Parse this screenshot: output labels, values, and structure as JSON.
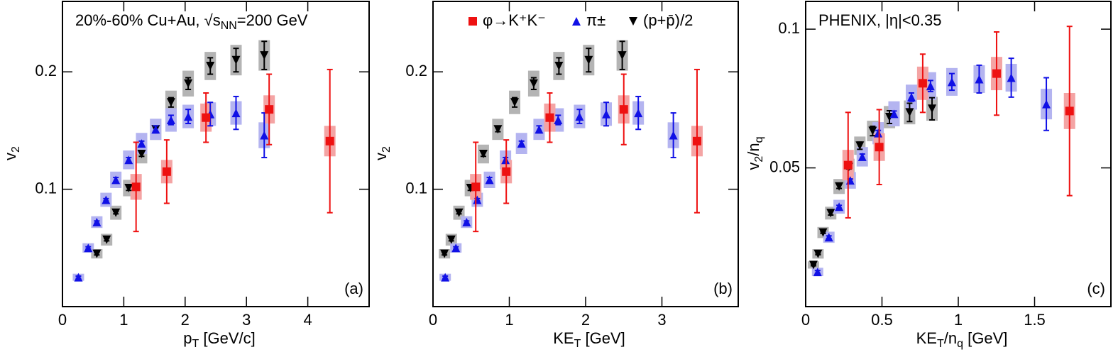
{
  "chart_data": [
    {
      "type": "scatter",
      "xlim": [
        0,
        5
      ],
      "ylim": [
        0,
        0.26
      ],
      "xticks": [
        0,
        1,
        2,
        3,
        4
      ],
      "yticks": [
        0.1,
        0.2
      ],
      "x_label": [
        {
          "text": "p"
        },
        {
          "sub": "T"
        },
        {
          "text": " [GeV/c]"
        }
      ],
      "y_label": [
        {
          "text": "v"
        },
        {
          "sub": "2"
        }
      ],
      "annotation": [
        {
          "text": "20%-60% Cu+Au, √"
        },
        {
          "text": "s"
        },
        {
          "sub": "NN"
        },
        {
          "text": "=200 GeV"
        }
      ],
      "panel_label": "(a)",
      "series": [
        {
          "marker": "triangle-down",
          "color": "#000000",
          "box_color": "#b4b4b4",
          "x": [
            0.56,
            0.72,
            0.87,
            1.08,
            1.29,
            1.52,
            1.77,
            2.05,
            2.41,
            2.83,
            3.29
          ],
          "values": [
            0.045,
            0.057,
            0.08,
            0.101,
            0.13,
            0.151,
            0.174,
            0.19,
            0.205,
            0.21,
            0.214
          ],
          "errors": [
            0.001,
            0.001,
            0.001,
            0.002,
            0.002,
            0.002,
            0.004,
            0.005,
            0.007,
            0.01,
            0.012
          ],
          "sys_errors": [
            0.004,
            0.005,
            0.006,
            0.007,
            0.008,
            0.009,
            0.01,
            0.011,
            0.012,
            0.013,
            0.013
          ]
        },
        {
          "marker": "triangle-up",
          "color": "#1010e6",
          "box_color": "#b4b4f0",
          "x": [
            0.26,
            0.42,
            0.56,
            0.71,
            0.87,
            1.08,
            1.29,
            1.52,
            1.77,
            2.05,
            2.41,
            2.83,
            3.29
          ],
          "values": [
            0.025,
            0.05,
            0.072,
            0.091,
            0.108,
            0.125,
            0.139,
            0.151,
            0.159,
            0.162,
            0.164,
            0.165,
            0.146
          ],
          "errors": [
            0.001,
            0.001,
            0.001,
            0.001,
            0.002,
            0.002,
            0.002,
            0.003,
            0.004,
            0.006,
            0.01,
            0.014,
            0.019
          ],
          "sys_errors": [
            0.003,
            0.004,
            0.005,
            0.006,
            0.007,
            0.008,
            0.009,
            0.009,
            0.01,
            0.01,
            0.01,
            0.01,
            0.011
          ]
        },
        {
          "marker": "square",
          "color": "#ee1111",
          "box_color": "#f4a4a4",
          "x": [
            1.2,
            1.7,
            2.34,
            3.37,
            4.36
          ],
          "values": [
            0.102,
            0.115,
            0.161,
            0.168,
            0.141
          ],
          "errors": [
            0.038,
            0.027,
            0.021,
            0.03,
            0.061
          ],
          "sys_errors": [
            0.011,
            0.01,
            0.012,
            0.012,
            0.013
          ]
        }
      ]
    },
    {
      "type": "scatter",
      "xlim": [
        0,
        4
      ],
      "ylim": [
        0,
        0.26
      ],
      "xticks": [
        0,
        1,
        2,
        3
      ],
      "yticks": [
        0.1,
        0.2
      ],
      "x_label": [
        {
          "text": "KE"
        },
        {
          "sub": "T"
        },
        {
          "text": " [GeV]"
        }
      ],
      "y_label": [
        {
          "text": "v"
        },
        {
          "sub": "2"
        }
      ],
      "panel_label": "(b)",
      "legend": "top",
      "series": [
        {
          "name": "(p+p̄)/2",
          "marker": "triangle-down",
          "color": "#000000",
          "box_color": "#b4b4b4",
          "x": [
            0.15,
            0.24,
            0.34,
            0.49,
            0.66,
            0.85,
            1.07,
            1.32,
            1.65,
            2.04,
            2.48
          ],
          "values": [
            0.045,
            0.057,
            0.08,
            0.101,
            0.13,
            0.151,
            0.174,
            0.19,
            0.205,
            0.21,
            0.214
          ],
          "errors": [
            0.001,
            0.001,
            0.001,
            0.002,
            0.002,
            0.002,
            0.004,
            0.005,
            0.007,
            0.01,
            0.012
          ],
          "sys_errors": [
            0.004,
            0.005,
            0.006,
            0.007,
            0.008,
            0.009,
            0.01,
            0.011,
            0.012,
            0.013,
            0.013
          ]
        },
        {
          "name": "π±",
          "marker": "triangle-up",
          "color": "#1010e6",
          "box_color": "#b4b4f0",
          "x": [
            0.16,
            0.3,
            0.44,
            0.58,
            0.74,
            0.95,
            1.16,
            1.39,
            1.64,
            1.92,
            2.27,
            2.69,
            3.15
          ],
          "values": [
            0.025,
            0.05,
            0.072,
            0.091,
            0.108,
            0.125,
            0.139,
            0.151,
            0.159,
            0.162,
            0.164,
            0.165,
            0.146
          ],
          "errors": [
            0.001,
            0.001,
            0.001,
            0.001,
            0.002,
            0.002,
            0.002,
            0.003,
            0.004,
            0.006,
            0.01,
            0.014,
            0.019
          ],
          "sys_errors": [
            0.003,
            0.004,
            0.005,
            0.006,
            0.007,
            0.008,
            0.009,
            0.009,
            0.01,
            0.01,
            0.01,
            0.01,
            0.011
          ]
        },
        {
          "name": "φ→K⁺K⁻",
          "marker": "square",
          "color": "#ee1111",
          "box_color": "#f4a4a4",
          "x": [
            0.56,
            0.96,
            1.53,
            2.5,
            3.46
          ],
          "values": [
            0.102,
            0.115,
            0.161,
            0.168,
            0.141
          ],
          "errors": [
            0.038,
            0.027,
            0.021,
            0.03,
            0.061
          ],
          "sys_errors": [
            0.011,
            0.01,
            0.012,
            0.012,
            0.013
          ]
        }
      ]
    },
    {
      "type": "scatter",
      "xlim": [
        0,
        2
      ],
      "ylim": [
        0,
        0.11
      ],
      "xticks": [
        0,
        0.5,
        1,
        1.5
      ],
      "yticks": [
        0.05,
        0.1
      ],
      "x_label": [
        {
          "text": "KE"
        },
        {
          "sub": "T"
        },
        {
          "text": "/n"
        },
        {
          "sub": "q"
        },
        {
          "text": " [GeV]"
        }
      ],
      "y_label": [
        {
          "text": "v"
        },
        {
          "sub": "2"
        },
        {
          "text": "/n"
        },
        {
          "sub": "q"
        }
      ],
      "annotation": [
        {
          "text": "PHENIX, |η|<0.35"
        }
      ],
      "panel_label": "(c)",
      "series": [
        {
          "marker": "triangle-down",
          "color": "#000000",
          "box_color": "#b4b4b4",
          "x": [
            0.051,
            0.081,
            0.114,
            0.164,
            0.219,
            0.283,
            0.355,
            0.439,
            0.549,
            0.681,
            0.828
          ],
          "values": [
            0.015,
            0.019,
            0.0267,
            0.0337,
            0.0433,
            0.0503,
            0.058,
            0.0633,
            0.0683,
            0.07,
            0.0713
          ],
          "errors": [
            0.0003,
            0.0003,
            0.0003,
            0.0007,
            0.0007,
            0.0007,
            0.0013,
            0.0017,
            0.0023,
            0.0033,
            0.004
          ],
          "sys_errors": [
            0.0013,
            0.0017,
            0.002,
            0.0023,
            0.0027,
            0.003,
            0.0033,
            0.0037,
            0.004,
            0.0043,
            0.0043
          ]
        },
        {
          "marker": "triangle-up",
          "color": "#1010e6",
          "box_color": "#b4b4f0",
          "x": [
            0.078,
            0.152,
            0.219,
            0.292,
            0.371,
            0.475,
            0.579,
            0.693,
            0.818,
            0.958,
            1.137,
            1.347,
            1.577
          ],
          "values": [
            0.0125,
            0.025,
            0.036,
            0.0455,
            0.054,
            0.0625,
            0.0695,
            0.0755,
            0.0795,
            0.081,
            0.082,
            0.0825,
            0.073
          ],
          "errors": [
            0.0005,
            0.0005,
            0.0005,
            0.0005,
            0.001,
            0.001,
            0.001,
            0.0015,
            0.002,
            0.003,
            0.005,
            0.007,
            0.0095
          ],
          "sys_errors": [
            0.0015,
            0.002,
            0.0025,
            0.003,
            0.0035,
            0.004,
            0.0045,
            0.0045,
            0.005,
            0.005,
            0.005,
            0.005,
            0.0055
          ]
        },
        {
          "marker": "square",
          "color": "#ee1111",
          "box_color": "#f4a4a4",
          "x": [
            0.278,
            0.482,
            0.767,
            1.251,
            1.729
          ],
          "values": [
            0.051,
            0.0575,
            0.0805,
            0.084,
            0.0705
          ],
          "errors": [
            0.019,
            0.0135,
            0.0105,
            0.015,
            0.0305
          ],
          "sys_errors": [
            0.0055,
            0.005,
            0.006,
            0.006,
            0.0065
          ]
        }
      ]
    }
  ]
}
